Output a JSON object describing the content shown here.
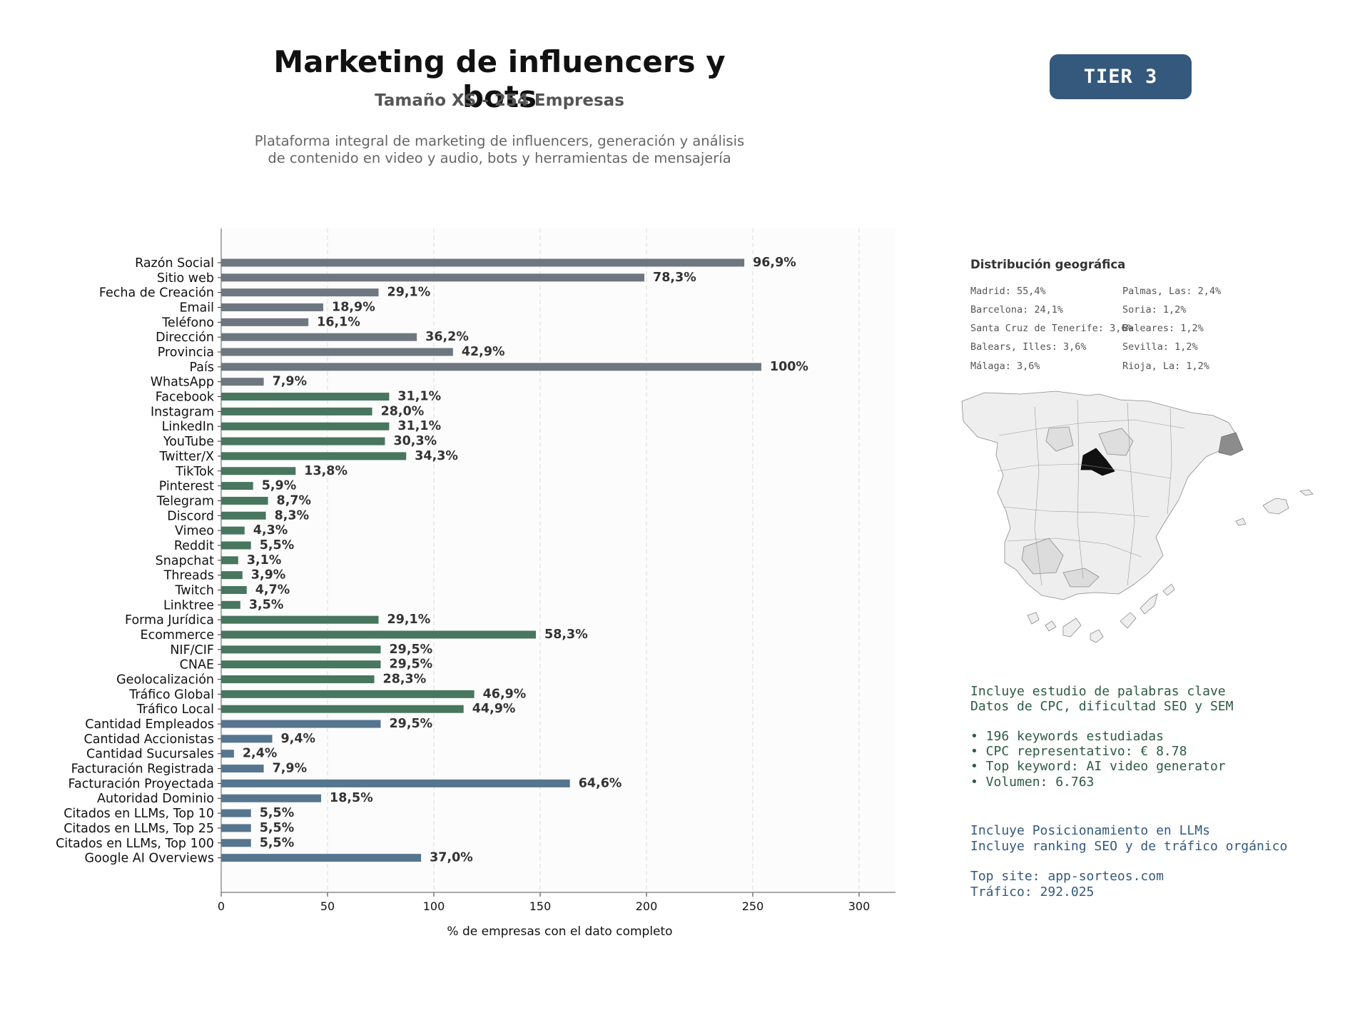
{
  "header": {
    "title": "Marketing de influencers y bots",
    "subtitle": "Tamaño XS - 254 Empresas",
    "description_lines": [
      "Plataforma integral de marketing de influencers, generación y análisis",
      "de contenido en video y audio, bots y herramientas de mensajería"
    ],
    "tier_badge": "TIER 3"
  },
  "colors": {
    "gray_bar": "#6e7780",
    "green_bar": "#48765f",
    "blue_bar": "#56758f",
    "badge": "#34597c",
    "keyword_text": "#2e5a45",
    "llm_text": "#34597c"
  },
  "chart_data": {
    "type": "bar",
    "orientation": "horizontal",
    "xlabel": "% de empresas con el dato completo",
    "xlim": [
      0,
      317
    ],
    "xticks": [
      0,
      50,
      100,
      150,
      200,
      250,
      300
    ],
    "grid": "vertical dashed",
    "categories": [
      "Razón Social",
      "Sitio web",
      "Fecha de Creación",
      "Email",
      "Teléfono",
      "Dirección",
      "Provincia",
      "País",
      "WhatsApp",
      "Facebook",
      "Instagram",
      "LinkedIn",
      "YouTube",
      "Twitter/X",
      "TikTok",
      "Pinterest",
      "Telegram",
      "Discord",
      "Vimeo",
      "Reddit",
      "Snapchat",
      "Threads",
      "Twitch",
      "Linktree",
      "Forma Jurídica",
      "Ecommerce",
      "NIF/CIF",
      "CNAE",
      "Geolocalización",
      "Tráfico Global",
      "Tráfico Local",
      "Cantidad Empleados",
      "Cantidad Accionistas",
      "Cantidad Sucursales",
      "Facturación Registrada",
      "Facturación Proyectada",
      "Autoridad Dominio",
      "Citados en LLMs, Top 10",
      "Citados en LLMs, Top 25",
      "Citados en LLMs, Top 100",
      "Google AI Overviews"
    ],
    "values": [
      246,
      199,
      74,
      48,
      41,
      92,
      109,
      254,
      20,
      79,
      71,
      79,
      77,
      87,
      35,
      15,
      22,
      21,
      11,
      14,
      8,
      10,
      12,
      9,
      74,
      148,
      75,
      75,
      72,
      119,
      114,
      75,
      24,
      6,
      20,
      164,
      47,
      14,
      14,
      14,
      94
    ],
    "value_labels": [
      "96,9%",
      "78,3%",
      "29,1%",
      "18,9%",
      "16,1%",
      "36,2%",
      "42,9%",
      "100%",
      "7,9%",
      "31,1%",
      "28,0%",
      "31,1%",
      "30,3%",
      "34,3%",
      "13,8%",
      "5,9%",
      "8,7%",
      "8,3%",
      "4,3%",
      "5,5%",
      "3,1%",
      "3,9%",
      "4,7%",
      "3,5%",
      "29,1%",
      "58,3%",
      "29,5%",
      "29,5%",
      "28,3%",
      "46,9%",
      "44,9%",
      "29,5%",
      "9,4%",
      "2,4%",
      "7,9%",
      "64,6%",
      "18,5%",
      "5,5%",
      "5,5%",
      "5,5%",
      "37,0%"
    ],
    "groups": [
      "gray",
      "gray",
      "gray",
      "gray",
      "gray",
      "gray",
      "gray",
      "gray",
      "gray",
      "green",
      "green",
      "green",
      "green",
      "green",
      "green",
      "green",
      "green",
      "green",
      "green",
      "green",
      "green",
      "green",
      "green",
      "green",
      "green",
      "green",
      "green",
      "green",
      "green",
      "green",
      "green",
      "blue",
      "blue",
      "blue",
      "blue",
      "blue",
      "blue",
      "blue",
      "blue",
      "blue",
      "blue"
    ]
  },
  "geo": {
    "title": "Distribución geográfica",
    "items_left": [
      "Madrid: 55,4%",
      "Barcelona: 24,1%",
      "Santa Cruz de Tenerife: 3,6%",
      "Balears, Illes: 3,6%",
      "Málaga: 3,6%"
    ],
    "items_right": [
      "Palmas, Las: 2,4%",
      "Soria: 1,2%",
      "Baleares: 1,2%",
      "Sevilla: 1,2%",
      "Rioja, La: 1,2%"
    ]
  },
  "keywords": {
    "lines": [
      "Incluye estudio de palabras clave",
      "Datos de CPC, dificultad SEO y SEM"
    ],
    "bullets": [
      "• 196 keywords estudiadas",
      "• CPC representativo: € 8.78",
      "• Top keyword: AI video generator",
      "• Volumen: 6.763"
    ]
  },
  "llm": {
    "lines": [
      "Incluye Posicionamiento en LLMs",
      "Incluye ranking SEO y de tráfico orgánico"
    ],
    "stats": [
      "Top site: app-sorteos.com",
      "Tráfico: 292.025"
    ]
  }
}
